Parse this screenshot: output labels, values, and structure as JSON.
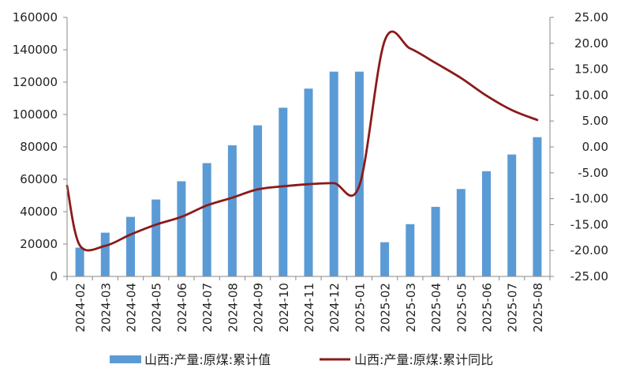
{
  "chart_data": {
    "type": "bar",
    "categories": [
      "2024-02",
      "2024-03",
      "2024-04",
      "2024-05",
      "2024-06",
      "2024-07",
      "2024-08",
      "2024-09",
      "2024-10",
      "2024-11",
      "2024-12",
      "2025-01",
      "2025-02",
      "2025-03",
      "2025-04",
      "2025-05",
      "2025-06",
      "2025-07",
      "2025-08"
    ],
    "series": [
      {
        "name": "山西:产量:原煤:累计值",
        "type": "bar",
        "axis": "left",
        "color": "#5B9BD5",
        "values": [
          17800,
          27000,
          36800,
          47500,
          58800,
          70000,
          81000,
          93300,
          104200,
          116000,
          126500,
          126500,
          21100,
          32300,
          43000,
          54000,
          65000,
          75300,
          86000
        ]
      },
      {
        "name": "山西:产量:原煤:累计同比",
        "type": "line",
        "axis": "right",
        "color": "#8B1A1A",
        "values": [
          -19.0,
          -19.1,
          -16.9,
          -15.0,
          -13.5,
          -11.3,
          -9.8,
          -8.2,
          -7.6,
          -7.2,
          -7.0,
          -7.5,
          20.5,
          19.0,
          16.2,
          13.3,
          9.9,
          7.1,
          5.2
        ]
      }
    ],
    "line_start_value": -7.5,
    "left_axis": {
      "min": 0,
      "max": 160000,
      "ticks": [
        "0",
        "20000",
        "40000",
        "60000",
        "80000",
        "100000",
        "120000",
        "140000",
        "160000"
      ]
    },
    "right_axis": {
      "min": -25,
      "max": 25,
      "ticks": [
        "-25.00",
        "-20.00",
        "-15.00",
        "-10.00",
        "-5.00",
        "0.00",
        "5.00",
        "10.00",
        "15.00",
        "20.00",
        "25.00"
      ]
    },
    "grid": false,
    "legend_position": "bottom"
  }
}
